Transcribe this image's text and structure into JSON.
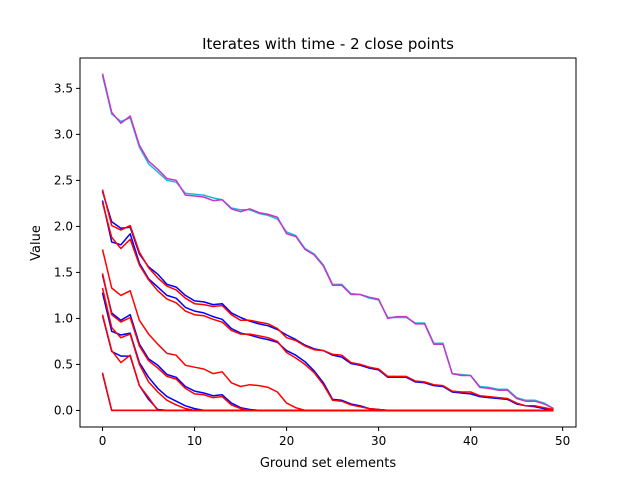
{
  "chart_data": {
    "type": "line",
    "title": "Iterates with time - 2 close points",
    "xlabel": "Ground set elements",
    "ylabel": "Value",
    "xlim": [
      -2.45,
      51.45
    ],
    "ylim": [
      -0.18,
      3.83
    ],
    "xticks": [
      0,
      10,
      20,
      30,
      40,
      50
    ],
    "yticks": [
      0.0,
      0.5,
      1.0,
      1.5,
      2.0,
      2.5,
      3.0,
      3.5
    ],
    "grid": false,
    "legend": "none",
    "colors": {
      "cyan": "#17becf",
      "magenta": "#cc33cc",
      "blue": "#0000ff",
      "red": "#ff0000"
    },
    "series": [
      {
        "color": "cyan",
        "values": [
          3.64,
          3.22,
          3.14,
          3.18,
          2.86,
          2.68,
          2.59,
          2.5,
          2.48,
          2.36,
          2.35,
          2.34,
          2.31,
          2.29,
          2.2,
          2.18,
          2.18,
          2.14,
          2.12,
          2.08,
          1.94,
          1.9,
          1.76,
          1.7,
          1.58,
          1.37,
          1.37,
          1.27,
          1.26,
          1.22,
          1.2,
          1.01,
          1.01,
          1.01,
          0.95,
          0.95,
          0.73,
          0.73,
          0.4,
          0.39,
          0.38,
          0.26,
          0.25,
          0.23,
          0.23,
          0.14,
          0.11,
          0.11,
          0.08,
          0.02
        ]
      },
      {
        "color": "magenta",
        "values": [
          3.66,
          3.24,
          3.12,
          3.2,
          2.88,
          2.71,
          2.62,
          2.52,
          2.5,
          2.34,
          2.33,
          2.32,
          2.28,
          2.29,
          2.19,
          2.16,
          2.19,
          2.15,
          2.13,
          2.1,
          1.92,
          1.89,
          1.75,
          1.69,
          1.57,
          1.36,
          1.36,
          1.26,
          1.26,
          1.23,
          1.21,
          1.0,
          1.02,
          1.02,
          0.94,
          0.94,
          0.72,
          0.72,
          0.4,
          0.38,
          0.38,
          0.25,
          0.24,
          0.22,
          0.22,
          0.13,
          0.1,
          0.1,
          0.07,
          0.02
        ]
      },
      {
        "color": "blue",
        "values": [
          2.38,
          2.05,
          1.98,
          1.99,
          1.7,
          1.56,
          1.48,
          1.37,
          1.34,
          1.25,
          1.19,
          1.18,
          1.15,
          1.16,
          1.06,
          1.01,
          0.97,
          0.94,
          0.92,
          0.88,
          0.82,
          0.77,
          0.71,
          0.67,
          0.65,
          0.6,
          0.58,
          0.51,
          0.49,
          0.46,
          0.44,
          0.36,
          0.36,
          0.36,
          0.31,
          0.3,
          0.27,
          0.26,
          0.2,
          0.19,
          0.18,
          0.15,
          0.14,
          0.13,
          0.12,
          0.07,
          0.05,
          0.04,
          0.02,
          0.0
        ]
      },
      {
        "color": "red",
        "values": [
          2.4,
          2.01,
          1.96,
          2.01,
          1.72,
          1.55,
          1.44,
          1.35,
          1.31,
          1.22,
          1.16,
          1.15,
          1.13,
          1.14,
          1.04,
          0.98,
          0.98,
          0.96,
          0.94,
          0.89,
          0.79,
          0.76,
          0.7,
          0.66,
          0.65,
          0.61,
          0.6,
          0.52,
          0.5,
          0.47,
          0.45,
          0.37,
          0.37,
          0.37,
          0.32,
          0.31,
          0.28,
          0.27,
          0.21,
          0.2,
          0.2,
          0.16,
          0.15,
          0.14,
          0.13,
          0.08,
          0.05,
          0.05,
          0.03,
          0.01
        ]
      },
      {
        "color": "blue",
        "values": [
          2.28,
          1.83,
          1.8,
          1.92,
          1.6,
          1.43,
          1.34,
          1.25,
          1.22,
          1.12,
          1.08,
          1.06,
          1.02,
          0.99,
          0.89,
          0.84,
          0.82,
          0.79,
          0.77,
          0.74,
          0.65,
          0.6,
          0.53,
          0.43,
          0.3,
          0.12,
          0.11,
          0.07,
          0.05,
          0.02,
          0.01,
          0.0,
          0.0,
          0.0,
          0.0,
          0.0,
          0.0,
          0.0,
          0.0,
          0.0,
          0.0,
          0.0,
          0.0,
          0.0,
          0.0,
          0.0,
          0.0,
          0.0,
          0.0,
          0.0
        ]
      },
      {
        "color": "red",
        "values": [
          2.26,
          1.88,
          1.76,
          1.86,
          1.58,
          1.42,
          1.3,
          1.21,
          1.17,
          1.08,
          1.04,
          1.03,
          0.99,
          0.96,
          0.87,
          0.83,
          0.83,
          0.81,
          0.79,
          0.75,
          0.63,
          0.57,
          0.5,
          0.41,
          0.28,
          0.11,
          0.1,
          0.06,
          0.04,
          0.02,
          0.01,
          0.0,
          0.0,
          0.0,
          0.0,
          0.0,
          0.0,
          0.0,
          0.0,
          0.0,
          0.0,
          0.0,
          0.0,
          0.0,
          0.0,
          0.0,
          0.0,
          0.0,
          0.0,
          0.0
        ]
      },
      {
        "color": "red",
        "values": [
          1.75,
          1.33,
          1.25,
          1.3,
          0.98,
          0.83,
          0.72,
          0.62,
          0.6,
          0.49,
          0.47,
          0.45,
          0.4,
          0.42,
          0.3,
          0.26,
          0.28,
          0.27,
          0.25,
          0.2,
          0.08,
          0.03,
          0.0,
          0.0,
          0.0,
          0.0,
          0.0,
          0.0,
          0.0,
          0.0,
          0.0,
          0.0,
          0.0,
          0.0,
          0.0,
          0.0,
          0.0,
          0.0,
          0.0,
          0.0,
          0.0,
          0.0,
          0.0,
          0.0,
          0.0,
          0.0,
          0.0,
          0.0,
          0.0,
          0.0
        ]
      },
      {
        "color": "blue",
        "values": [
          1.47,
          1.06,
          0.98,
          1.04,
          0.72,
          0.56,
          0.49,
          0.39,
          0.36,
          0.26,
          0.21,
          0.19,
          0.16,
          0.17,
          0.08,
          0.03,
          0.01,
          0.0,
          0.0,
          0.0,
          0.0,
          0.0,
          0.0,
          0.0,
          0.0,
          0.0,
          0.0,
          0.0,
          0.0,
          0.0,
          0.0,
          0.0,
          0.0,
          0.0,
          0.0,
          0.0,
          0.0,
          0.0,
          0.0,
          0.0,
          0.0,
          0.0,
          0.0,
          0.0,
          0.0,
          0.0,
          0.0,
          0.0,
          0.0,
          0.0
        ]
      },
      {
        "color": "red",
        "values": [
          1.49,
          1.04,
          0.96,
          1.01,
          0.7,
          0.54,
          0.46,
          0.37,
          0.34,
          0.24,
          0.18,
          0.17,
          0.14,
          0.15,
          0.06,
          0.02,
          0.0,
          0.0,
          0.0,
          0.0,
          0.0,
          0.0,
          0.0,
          0.0,
          0.0,
          0.0,
          0.0,
          0.0,
          0.0,
          0.0,
          0.0,
          0.0,
          0.0,
          0.0,
          0.0,
          0.0,
          0.0,
          0.0,
          0.0,
          0.0,
          0.0,
          0.0,
          0.0,
          0.0,
          0.0,
          0.0,
          0.0,
          0.0,
          0.0,
          0.0
        ]
      },
      {
        "color": "blue",
        "values": [
          1.28,
          0.86,
          0.82,
          0.84,
          0.52,
          0.36,
          0.24,
          0.15,
          0.1,
          0.05,
          0.02,
          0.0,
          0.0,
          0.0,
          0.0,
          0.0,
          0.0,
          0.0,
          0.0,
          0.0,
          0.0,
          0.0,
          0.0,
          0.0,
          0.0,
          0.0,
          0.0,
          0.0,
          0.0,
          0.0,
          0.0,
          0.0,
          0.0,
          0.0,
          0.0,
          0.0,
          0.0,
          0.0,
          0.0,
          0.0,
          0.0,
          0.0,
          0.0,
          0.0,
          0.0,
          0.0,
          0.0,
          0.0,
          0.0,
          0.0
        ]
      },
      {
        "color": "red",
        "values": [
          1.33,
          0.9,
          0.79,
          0.83,
          0.5,
          0.31,
          0.2,
          0.11,
          0.06,
          0.02,
          0.0,
          0.0,
          0.0,
          0.0,
          0.0,
          0.0,
          0.0,
          0.0,
          0.0,
          0.0,
          0.0,
          0.0,
          0.0,
          0.0,
          0.0,
          0.0,
          0.0,
          0.0,
          0.0,
          0.0,
          0.0,
          0.0,
          0.0,
          0.0,
          0.0,
          0.0,
          0.0,
          0.0,
          0.0,
          0.0,
          0.0,
          0.0,
          0.0,
          0.0,
          0.0,
          0.0,
          0.0,
          0.0,
          0.0,
          0.0
        ]
      },
      {
        "color": "blue",
        "values": [
          1.03,
          0.64,
          0.59,
          0.59,
          0.27,
          0.12,
          0.01,
          0.0,
          0.0,
          0.0,
          0.0,
          0.0,
          0.0,
          0.0,
          0.0,
          0.0,
          0.0,
          0.0,
          0.0,
          0.0,
          0.0,
          0.0,
          0.0,
          0.0,
          0.0,
          0.0,
          0.0,
          0.0,
          0.0,
          0.0,
          0.0,
          0.0,
          0.0,
          0.0,
          0.0,
          0.0,
          0.0,
          0.0,
          0.0,
          0.0,
          0.0,
          0.0,
          0.0,
          0.0,
          0.0,
          0.0,
          0.0,
          0.0,
          0.0,
          0.0
        ]
      },
      {
        "color": "red",
        "values": [
          1.04,
          0.65,
          0.52,
          0.6,
          0.27,
          0.14,
          0.0,
          0.0,
          0.0,
          0.0,
          0.0,
          0.0,
          0.0,
          0.0,
          0.0,
          0.0,
          0.0,
          0.0,
          0.0,
          0.0,
          0.0,
          0.0,
          0.0,
          0.0,
          0.0,
          0.0,
          0.0,
          0.0,
          0.0,
          0.0,
          0.0,
          0.0,
          0.0,
          0.0,
          0.0,
          0.0,
          0.0,
          0.0,
          0.0,
          0.0,
          0.0,
          0.0,
          0.0,
          0.0,
          0.0,
          0.0,
          0.0,
          0.0,
          0.0,
          0.0
        ]
      },
      {
        "color": "blue",
        "values": [
          0.4,
          0.0,
          0.0,
          0.0,
          0.0,
          0.0,
          0.0,
          0.0,
          0.0,
          0.0,
          0.0,
          0.0,
          0.0,
          0.0,
          0.0,
          0.0,
          0.0,
          0.0,
          0.0,
          0.0,
          0.0,
          0.0,
          0.0,
          0.0,
          0.0,
          0.0,
          0.0,
          0.0,
          0.0,
          0.0,
          0.0,
          0.0,
          0.0,
          0.0,
          0.0,
          0.0,
          0.0,
          0.0,
          0.0,
          0.0,
          0.0,
          0.0,
          0.0,
          0.0,
          0.0,
          0.0,
          0.0,
          0.0,
          0.0,
          0.0
        ]
      },
      {
        "color": "red",
        "values": [
          0.41,
          0.0,
          0.0,
          0.0,
          0.0,
          0.0,
          0.0,
          0.0,
          0.0,
          0.0,
          0.0,
          0.0,
          0.0,
          0.0,
          0.0,
          0.0,
          0.0,
          0.0,
          0.0,
          0.0,
          0.0,
          0.0,
          0.0,
          0.0,
          0.0,
          0.0,
          0.0,
          0.0,
          0.0,
          0.0,
          0.0,
          0.0,
          0.0,
          0.0,
          0.0,
          0.0,
          0.0,
          0.0,
          0.0,
          0.0,
          0.0,
          0.0,
          0.0,
          0.0,
          0.0,
          0.0,
          0.0,
          0.0,
          0.0,
          0.0
        ]
      }
    ]
  }
}
